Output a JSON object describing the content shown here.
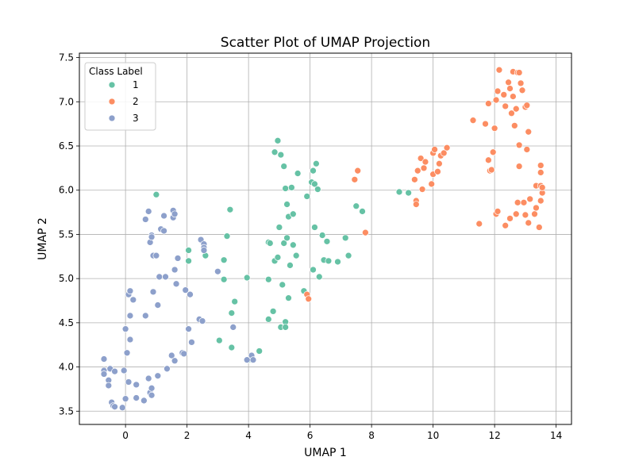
{
  "chart_data": {
    "type": "scatter",
    "title": "Scatter Plot of UMAP Projection",
    "xlabel": "UMAP 1",
    "ylabel": "UMAP 2",
    "xlim": [
      -1.5,
      14.5
    ],
    "ylim": [
      3.35,
      7.55
    ],
    "xticks": [
      0,
      2,
      4,
      6,
      8,
      10,
      12,
      14
    ],
    "yticks": [
      3.5,
      4.0,
      4.5,
      5.0,
      5.5,
      6.0,
      6.5,
      7.0,
      7.5
    ],
    "grid": true,
    "legend": {
      "title": "Class Label",
      "placement": "top-left"
    },
    "series": [
      {
        "name": "1",
        "color": "#66c2a5",
        "points": [
          [
            1.0,
            5.95
          ],
          [
            3.4,
            5.78
          ],
          [
            2.05,
            5.32
          ],
          [
            2.6,
            5.26
          ],
          [
            2.05,
            5.2
          ],
          [
            3.2,
            5.21
          ],
          [
            3.3,
            5.48
          ],
          [
            3.2,
            4.99
          ],
          [
            3.55,
            4.74
          ],
          [
            3.45,
            4.61
          ],
          [
            3.05,
            4.3
          ],
          [
            3.45,
            4.22
          ],
          [
            3.95,
            5.01
          ],
          [
            4.0,
            4.08
          ],
          [
            4.35,
            4.18
          ],
          [
            4.85,
            6.43
          ],
          [
            4.95,
            6.56
          ],
          [
            5.05,
            6.4
          ],
          [
            5.15,
            6.27
          ],
          [
            5.2,
            6.02
          ],
          [
            5.4,
            6.03
          ],
          [
            5.6,
            6.19
          ],
          [
            5.9,
            5.93
          ],
          [
            6.05,
            6.09
          ],
          [
            6.15,
            6.07
          ],
          [
            6.1,
            6.22
          ],
          [
            6.2,
            6.3
          ],
          [
            6.25,
            6.01
          ],
          [
            5.0,
            5.58
          ],
          [
            5.25,
            5.84
          ],
          [
            5.3,
            5.7
          ],
          [
            5.45,
            5.73
          ],
          [
            4.65,
            5.41
          ],
          [
            4.7,
            5.4
          ],
          [
            4.85,
            5.2
          ],
          [
            4.95,
            5.24
          ],
          [
            5.15,
            5.4
          ],
          [
            5.25,
            5.46
          ],
          [
            5.45,
            5.38
          ],
          [
            5.55,
            5.26
          ],
          [
            5.35,
            5.15
          ],
          [
            4.65,
            4.99
          ],
          [
            5.1,
            4.93
          ],
          [
            5.3,
            4.78
          ],
          [
            4.8,
            4.63
          ],
          [
            4.65,
            4.54
          ],
          [
            5.05,
            4.45
          ],
          [
            5.2,
            4.51
          ],
          [
            5.2,
            4.45
          ],
          [
            5.8,
            4.86
          ],
          [
            6.1,
            5.1
          ],
          [
            6.15,
            5.58
          ],
          [
            6.3,
            5.02
          ],
          [
            6.4,
            5.49
          ],
          [
            6.45,
            5.21
          ],
          [
            6.55,
            5.42
          ],
          [
            6.6,
            5.2
          ],
          [
            6.9,
            5.19
          ],
          [
            7.15,
            5.46
          ],
          [
            7.25,
            5.26
          ],
          [
            7.5,
            5.82
          ],
          [
            7.7,
            5.76
          ],
          [
            8.9,
            5.98
          ],
          [
            9.2,
            5.97
          ]
        ]
      },
      {
        "name": "2",
        "color": "#fc8d62",
        "points": [
          [
            5.9,
            4.82
          ],
          [
            5.95,
            4.77
          ],
          [
            7.45,
            6.12
          ],
          [
            7.55,
            6.22
          ],
          [
            7.8,
            5.52
          ],
          [
            9.4,
            6.12
          ],
          [
            9.45,
            5.88
          ],
          [
            9.45,
            5.84
          ],
          [
            9.5,
            6.22
          ],
          [
            9.6,
            6.36
          ],
          [
            9.7,
            6.25
          ],
          [
            9.65,
            6.01
          ],
          [
            9.75,
            6.32
          ],
          [
            9.95,
            6.07
          ],
          [
            10.0,
            6.18
          ],
          [
            10.0,
            6.42
          ],
          [
            10.05,
            6.46
          ],
          [
            10.15,
            6.21
          ],
          [
            10.2,
            6.3
          ],
          [
            10.25,
            6.39
          ],
          [
            10.35,
            6.42
          ],
          [
            10.45,
            6.48
          ],
          [
            11.3,
            6.79
          ],
          [
            11.5,
            5.62
          ],
          [
            11.7,
            6.75
          ],
          [
            11.8,
            6.98
          ],
          [
            11.8,
            6.34
          ],
          [
            11.85,
            6.22
          ],
          [
            11.9,
            6.23
          ],
          [
            11.95,
            6.43
          ],
          [
            12.0,
            6.7
          ],
          [
            12.05,
            7.02
          ],
          [
            12.1,
            7.12
          ],
          [
            12.15,
            7.36
          ],
          [
            12.3,
            7.08
          ],
          [
            12.35,
            6.95
          ],
          [
            12.45,
            7.22
          ],
          [
            12.5,
            7.15
          ],
          [
            12.55,
            6.87
          ],
          [
            12.6,
            7.34
          ],
          [
            12.6,
            7.06
          ],
          [
            12.65,
            6.73
          ],
          [
            12.7,
            6.92
          ],
          [
            12.75,
            7.33
          ],
          [
            12.8,
            7.33
          ],
          [
            12.85,
            7.21
          ],
          [
            12.9,
            7.13
          ],
          [
            13.0,
            6.94
          ],
          [
            13.05,
            6.96
          ],
          [
            13.1,
            6.66
          ],
          [
            12.8,
            6.51
          ],
          [
            13.05,
            6.46
          ],
          [
            12.8,
            6.27
          ],
          [
            12.05,
            5.73
          ],
          [
            12.1,
            5.76
          ],
          [
            12.35,
            5.6
          ],
          [
            12.5,
            5.68
          ],
          [
            12.7,
            5.73
          ],
          [
            12.75,
            5.86
          ],
          [
            12.95,
            5.86
          ],
          [
            13.0,
            5.72
          ],
          [
            13.1,
            5.63
          ],
          [
            13.15,
            5.9
          ],
          [
            13.3,
            5.73
          ],
          [
            13.35,
            5.8
          ],
          [
            13.35,
            6.05
          ],
          [
            13.45,
            5.58
          ],
          [
            13.5,
            6.05
          ],
          [
            13.5,
            6.28
          ],
          [
            13.5,
            6.2
          ],
          [
            13.5,
            5.88
          ],
          [
            13.55,
            5.97
          ],
          [
            13.55,
            6.03
          ]
        ]
      },
      {
        "name": "3",
        "color": "#8da0cb",
        "points": [
          [
            -0.7,
            4.09
          ],
          [
            -0.7,
            3.96
          ],
          [
            -0.7,
            3.92
          ],
          [
            -0.55,
            3.85
          ],
          [
            -0.55,
            3.79
          ],
          [
            -0.5,
            3.98
          ],
          [
            -0.45,
            3.6
          ],
          [
            -0.4,
            3.56
          ],
          [
            -0.35,
            3.55
          ],
          [
            -0.35,
            3.95
          ],
          [
            -0.1,
            3.54
          ],
          [
            -0.05,
            3.96
          ],
          [
            0.0,
            4.43
          ],
          [
            0.0,
            3.64
          ],
          [
            0.05,
            4.16
          ],
          [
            0.1,
            3.83
          ],
          [
            0.1,
            4.82
          ],
          [
            0.15,
            4.86
          ],
          [
            0.15,
            4.58
          ],
          [
            0.15,
            4.31
          ],
          [
            0.25,
            4.76
          ],
          [
            0.35,
            3.8
          ],
          [
            0.35,
            3.65
          ],
          [
            0.6,
            3.62
          ],
          [
            0.75,
            5.76
          ],
          [
            0.65,
            5.67
          ],
          [
            0.65,
            4.58
          ],
          [
            0.75,
            3.87
          ],
          [
            0.8,
            3.71
          ],
          [
            0.85,
            3.76
          ],
          [
            0.85,
            3.68
          ],
          [
            0.85,
            5.49
          ],
          [
            0.8,
            5.41
          ],
          [
            0.85,
            5.47
          ],
          [
            0.9,
            4.85
          ],
          [
            0.9,
            5.26
          ],
          [
            1.0,
            5.26
          ],
          [
            1.05,
            4.7
          ],
          [
            1.05,
            3.9
          ],
          [
            1.1,
            5.02
          ],
          [
            1.15,
            5.56
          ],
          [
            1.25,
            5.71
          ],
          [
            1.25,
            5.54
          ],
          [
            1.3,
            5.02
          ],
          [
            1.35,
            3.98
          ],
          [
            1.5,
            4.13
          ],
          [
            1.55,
            5.69
          ],
          [
            1.55,
            5.77
          ],
          [
            1.6,
            5.73
          ],
          [
            1.6,
            5.1
          ],
          [
            1.6,
            4.07
          ],
          [
            1.65,
            4.94
          ],
          [
            1.7,
            5.23
          ],
          [
            1.85,
            4.16
          ],
          [
            1.95,
            4.87
          ],
          [
            1.9,
            4.15
          ],
          [
            2.05,
            4.43
          ],
          [
            2.1,
            4.82
          ],
          [
            2.15,
            4.28
          ],
          [
            2.4,
            4.54
          ],
          [
            2.45,
            5.44
          ],
          [
            2.55,
            5.39
          ],
          [
            2.55,
            5.35
          ],
          [
            2.55,
            5.32
          ],
          [
            2.5,
            4.52
          ],
          [
            3.0,
            5.08
          ],
          [
            3.5,
            4.45
          ],
          [
            4.1,
            4.13
          ],
          [
            4.15,
            4.08
          ],
          [
            3.95,
            4.08
          ]
        ]
      }
    ]
  }
}
